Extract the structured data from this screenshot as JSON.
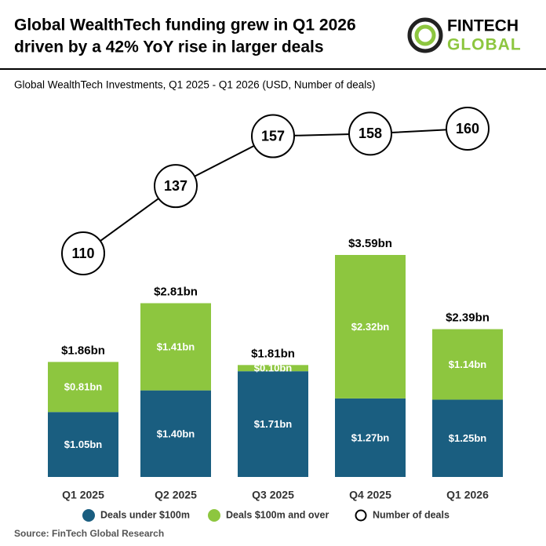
{
  "header": {
    "title_line1": "Global WealthTech funding grew in Q1 2026",
    "title_line2": "driven by a 42% YoY rise in larger deals",
    "logo_line1": "FINTECH",
    "logo_line2": "GLOBAL"
  },
  "chart_data": {
    "type": "stacked-bar-line",
    "subtitle": "Global WealthTech Investments, Q1 2025 - Q1 2026 (USD, Number of deals)",
    "categories": [
      "Q1 2025",
      "Q2 2025",
      "Q3 2025",
      "Q4 2025",
      "Q1 2026"
    ],
    "series": [
      {
        "name": "Deals under $100m",
        "color": "#1a5e80",
        "values": [
          1.05,
          1.4,
          1.71,
          1.27,
          1.25
        ],
        "value_labels": [
          "$1.05bn",
          "$1.40bn",
          "$1.71bn",
          "$1.27bn",
          "$1.25bn"
        ]
      },
      {
        "name": "Deals $100m and over",
        "color": "#8dc63f",
        "values": [
          0.81,
          1.41,
          0.1,
          2.32,
          1.14
        ],
        "value_labels": [
          "$0.81bn",
          "$1.41bn",
          "$0.10bn",
          "$2.32bn",
          "$1.14bn"
        ]
      }
    ],
    "totals": {
      "values": [
        1.86,
        2.81,
        1.81,
        3.59,
        2.39
      ],
      "value_labels": [
        "$1.86bn",
        "$2.81bn",
        "$1.81bn",
        "$3.59bn",
        "$2.39bn"
      ]
    },
    "line": {
      "name": "Number of deals",
      "values": [
        110,
        137,
        157,
        158,
        160
      ]
    },
    "source": "Source: FinTech Global Research"
  }
}
